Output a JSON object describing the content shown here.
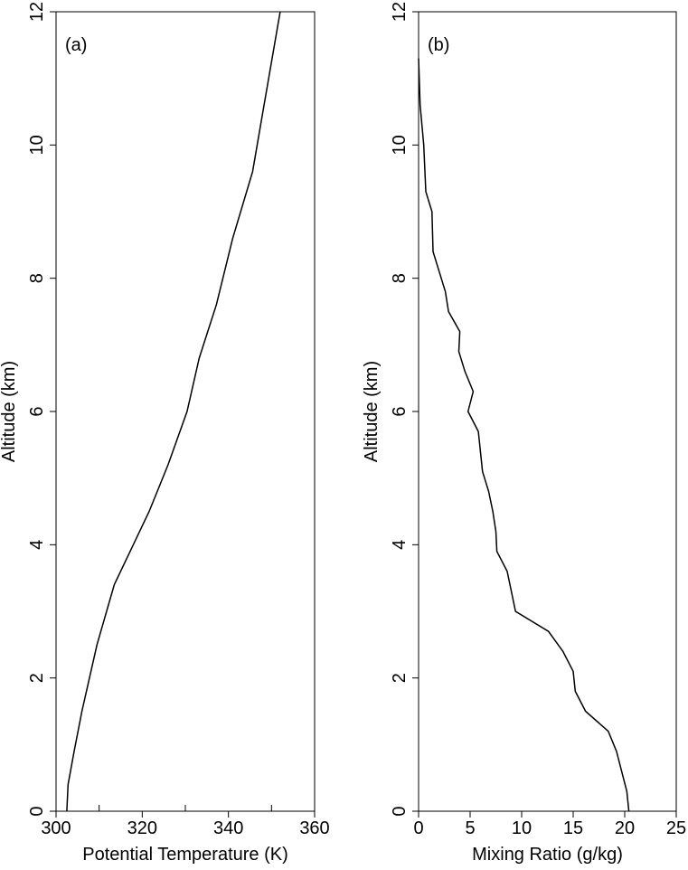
{
  "chart_data": [
    {
      "type": "line",
      "label": "(a)",
      "xlabel": "Potential Temperature (K)",
      "ylabel": "Altitude (km)",
      "x": [
        302.5,
        302.8,
        304.2,
        306,
        309.5,
        313.5,
        321.6,
        326,
        330.4,
        333.2,
        337.2,
        341,
        345.6,
        348,
        352
      ],
      "values": [
        0,
        0.4,
        0.9,
        1.5,
        2.5,
        3.4,
        4.5,
        5.2,
        6,
        6.8,
        7.6,
        8.6,
        9.6,
        10.5,
        12
      ],
      "color": "#000000",
      "xlim": [
        300,
        360
      ],
      "xticks": [
        300,
        320,
        340,
        360
      ],
      "xminorticks": [
        310,
        330,
        350
      ],
      "ylim": [
        0,
        12
      ],
      "yticks": [
        0,
        2,
        4,
        6,
        8,
        10,
        12
      ]
    },
    {
      "type": "line",
      "label": "(b)",
      "xlabel": "Mixing Ratio (g/kg)",
      "ylabel": "Altitude (km)",
      "x": [
        20.4,
        20.2,
        19.2,
        18.4,
        16.2,
        15.2,
        15.0,
        14.0,
        12.6,
        9.4,
        9.0,
        8.6,
        7.6,
        7.5,
        7.2,
        6.8,
        6.2,
        5.8,
        4.8,
        5.3,
        4.5,
        3.9,
        4.0,
        2.9,
        2.6,
        2.0,
        1.4,
        1.3,
        0.7,
        0.5,
        0.15,
        0
      ],
      "values": [
        0,
        0.3,
        0.9,
        1.2,
        1.5,
        1.8,
        2.1,
        2.4,
        2.7,
        3.0,
        3.3,
        3.6,
        3.9,
        4.2,
        4.5,
        4.8,
        5.1,
        5.7,
        6.0,
        6.3,
        6.6,
        6.9,
        7.2,
        7.5,
        7.8,
        8.1,
        8.4,
        9.0,
        9.3,
        10.0,
        10.6,
        11.3
      ],
      "color": "#000000",
      "xlim": [
        0,
        25
      ],
      "xticks": [
        0,
        5,
        10,
        15,
        20,
        25
      ],
      "ylim": [
        0,
        12
      ],
      "yticks": [
        0,
        2,
        4,
        6,
        8,
        10,
        12
      ]
    }
  ]
}
